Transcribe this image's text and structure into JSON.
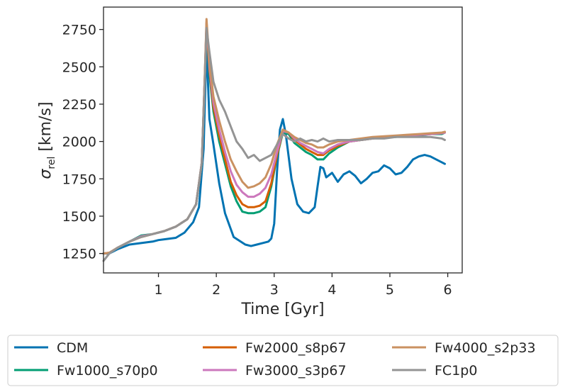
{
  "chart_data": {
    "type": "line",
    "title": "",
    "xlabel": "Time [Gyr]",
    "ylabel_symbol": "σ",
    "ylabel_subscript": "rel",
    "ylabel_units": " [km/s]",
    "xlim": [
      0.05,
      6.25
    ],
    "ylim": [
      1120,
      2900
    ],
    "xticks": [
      1,
      2,
      3,
      4,
      5,
      6
    ],
    "xtick_labels": [
      "1",
      "2",
      "3",
      "4",
      "5",
      "6"
    ],
    "yticks": [
      1250,
      1500,
      1750,
      2000,
      2250,
      2500,
      2750
    ],
    "ytick_labels": [
      "1250",
      "1500",
      "1750",
      "2000",
      "2250",
      "2500",
      "2750"
    ],
    "grid": false,
    "legend_position": "below-center",
    "series": [
      {
        "name": "CDM",
        "color": "#0173b2",
        "x": [
          0.05,
          0.15,
          0.3,
          0.5,
          0.7,
          0.9,
          1.0,
          1.1,
          1.3,
          1.45,
          1.6,
          1.7,
          1.78,
          1.83,
          1.88,
          1.95,
          2.05,
          2.15,
          2.3,
          2.5,
          2.6,
          2.7,
          2.8,
          2.9,
          2.95,
          3.0,
          3.05,
          3.1,
          3.15,
          3.2,
          3.3,
          3.4,
          3.5,
          3.6,
          3.7,
          3.75,
          3.8,
          3.85,
          3.9,
          4.0,
          4.1,
          4.2,
          4.3,
          4.4,
          4.5,
          4.6,
          4.7,
          4.8,
          4.9,
          5.0,
          5.1,
          5.2,
          5.3,
          5.4,
          5.5,
          5.6,
          5.7,
          5.8,
          5.9,
          5.95
        ],
        "values": [
          1250,
          1250,
          1280,
          1310,
          1320,
          1330,
          1340,
          1345,
          1355,
          1390,
          1460,
          1560,
          1950,
          2650,
          2150,
          1980,
          1720,
          1520,
          1360,
          1310,
          1300,
          1310,
          1320,
          1330,
          1350,
          1450,
          1800,
          2080,
          2150,
          2050,
          1750,
          1580,
          1530,
          1520,
          1560,
          1700,
          1830,
          1820,
          1760,
          1790,
          1730,
          1780,
          1800,
          1770,
          1720,
          1750,
          1790,
          1800,
          1840,
          1820,
          1780,
          1790,
          1830,
          1880,
          1900,
          1910,
          1900,
          1880,
          1860,
          1850
        ]
      },
      {
        "name": "Fw1000_s70p0",
        "color": "#029e73",
        "x": [
          0.05,
          0.15,
          0.3,
          0.5,
          0.7,
          0.9,
          1.1,
          1.3,
          1.5,
          1.65,
          1.75,
          1.8,
          1.83,
          1.88,
          1.95,
          2.05,
          2.15,
          2.25,
          2.35,
          2.45,
          2.55,
          2.65,
          2.75,
          2.85,
          2.95,
          3.05,
          3.15,
          3.25,
          3.35,
          3.45,
          3.55,
          3.65,
          3.75,
          3.85,
          3.95,
          4.1,
          4.3,
          4.5,
          4.7,
          4.9,
          5.1,
          5.3,
          5.5,
          5.7,
          5.9,
          5.95
        ],
        "values": [
          1250,
          1255,
          1290,
          1330,
          1370,
          1380,
          1400,
          1430,
          1480,
          1580,
          1850,
          2400,
          2770,
          2450,
          2200,
          2000,
          1850,
          1700,
          1600,
          1530,
          1520,
          1520,
          1530,
          1560,
          1700,
          1900,
          2060,
          2050,
          1990,
          1960,
          1930,
          1910,
          1880,
          1880,
          1920,
          1960,
          2000,
          2010,
          2020,
          2030,
          2030,
          2040,
          2040,
          2050,
          2050,
          2060
        ]
      },
      {
        "name": "Fw2000_s8p67",
        "color": "#d55e00",
        "x": [
          0.05,
          0.15,
          0.3,
          0.5,
          0.7,
          0.9,
          1.1,
          1.3,
          1.5,
          1.65,
          1.75,
          1.8,
          1.83,
          1.88,
          1.95,
          2.05,
          2.15,
          2.25,
          2.35,
          2.45,
          2.55,
          2.65,
          2.75,
          2.85,
          2.95,
          3.05,
          3.15,
          3.25,
          3.35,
          3.45,
          3.55,
          3.65,
          3.75,
          3.85,
          3.95,
          4.1,
          4.3,
          4.5,
          4.7,
          4.9,
          5.1,
          5.3,
          5.5,
          5.7,
          5.9,
          5.95
        ],
        "values": [
          1250,
          1255,
          1290,
          1330,
          1360,
          1380,
          1400,
          1430,
          1480,
          1580,
          1860,
          2420,
          2790,
          2480,
          2230,
          2040,
          1880,
          1730,
          1640,
          1580,
          1560,
          1560,
          1570,
          1600,
          1720,
          1910,
          2070,
          2060,
          2010,
          1980,
          1950,
          1930,
          1910,
          1910,
          1940,
          1970,
          2000,
          2010,
          2020,
          2030,
          2035,
          2040,
          2045,
          2050,
          2055,
          2060
        ]
      },
      {
        "name": "Fw3000_s3p67",
        "color": "#cc78bc",
        "x": [
          0.05,
          0.15,
          0.3,
          0.5,
          0.7,
          0.9,
          1.1,
          1.3,
          1.5,
          1.65,
          1.75,
          1.8,
          1.83,
          1.88,
          1.95,
          2.05,
          2.15,
          2.25,
          2.35,
          2.45,
          2.55,
          2.65,
          2.75,
          2.85,
          2.95,
          3.05,
          3.15,
          3.25,
          3.35,
          3.45,
          3.55,
          3.65,
          3.75,
          3.85,
          3.95,
          4.1,
          4.3,
          4.5,
          4.7,
          4.9,
          5.1,
          5.3,
          5.5,
          5.7,
          5.9,
          5.95
        ],
        "values": [
          1250,
          1255,
          1290,
          1330,
          1365,
          1380,
          1400,
          1430,
          1480,
          1580,
          1860,
          2420,
          2800,
          2500,
          2260,
          2080,
          1930,
          1800,
          1710,
          1660,
          1630,
          1630,
          1650,
          1690,
          1780,
          1930,
          2070,
          2060,
          2020,
          1990,
          1970,
          1950,
          1930,
          1920,
          1950,
          1980,
          2000,
          2010,
          2020,
          2030,
          2035,
          2040,
          2045,
          2050,
          2055,
          2060
        ]
      },
      {
        "name": "Fw4000_s2p33",
        "color": "#ca9161",
        "x": [
          0.05,
          0.15,
          0.3,
          0.5,
          0.7,
          0.9,
          1.1,
          1.3,
          1.5,
          1.65,
          1.75,
          1.8,
          1.83,
          1.88,
          1.95,
          2.05,
          2.15,
          2.25,
          2.35,
          2.45,
          2.55,
          2.65,
          2.75,
          2.85,
          2.95,
          3.05,
          3.15,
          3.25,
          3.35,
          3.45,
          3.55,
          3.65,
          3.75,
          3.85,
          3.95,
          4.1,
          4.3,
          4.5,
          4.7,
          4.9,
          5.1,
          5.3,
          5.5,
          5.7,
          5.9,
          5.95
        ],
        "values": [
          1250,
          1255,
          1290,
          1330,
          1360,
          1380,
          1400,
          1430,
          1480,
          1580,
          1860,
          2430,
          2820,
          2530,
          2300,
          2140,
          2000,
          1880,
          1800,
          1730,
          1690,
          1700,
          1720,
          1760,
          1850,
          1980,
          2080,
          2060,
          2030,
          2010,
          1990,
          1980,
          1960,
          1960,
          1980,
          2000,
          2010,
          2020,
          2030,
          2035,
          2040,
          2045,
          2050,
          2055,
          2060,
          2065
        ]
      },
      {
        "name": "FC1p0",
        "color": "#949494",
        "x": [
          0.05,
          0.15,
          0.3,
          0.5,
          0.7,
          0.9,
          1.1,
          1.3,
          1.5,
          1.65,
          1.75,
          1.8,
          1.83,
          1.88,
          1.95,
          2.05,
          2.15,
          2.25,
          2.35,
          2.45,
          2.55,
          2.65,
          2.75,
          2.85,
          2.95,
          3.05,
          3.15,
          3.25,
          3.35,
          3.45,
          3.55,
          3.65,
          3.75,
          3.85,
          3.95,
          4.1,
          4.3,
          4.5,
          4.7,
          4.9,
          5.1,
          5.3,
          5.5,
          5.7,
          5.9,
          5.95
        ],
        "values": [
          1200,
          1250,
          1290,
          1330,
          1360,
          1380,
          1400,
          1430,
          1480,
          1580,
          1860,
          2400,
          2760,
          2600,
          2400,
          2280,
          2200,
          2100,
          2000,
          1950,
          1890,
          1910,
          1870,
          1890,
          1910,
          1980,
          2050,
          2020,
          2000,
          2020,
          2000,
          2010,
          2000,
          2020,
          2000,
          2010,
          2010,
          2010,
          2020,
          2020,
          2030,
          2030,
          2030,
          2030,
          2020,
          2010
        ]
      }
    ]
  }
}
